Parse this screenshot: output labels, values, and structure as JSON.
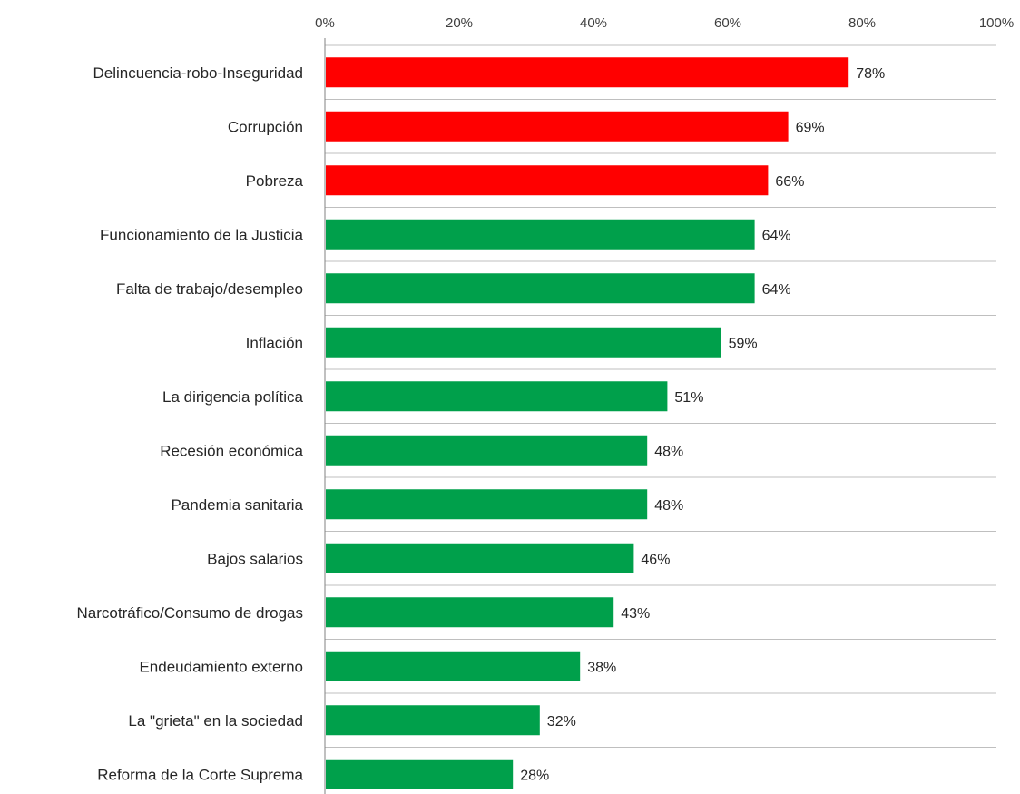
{
  "chart_data": {
    "type": "bar",
    "orientation": "horizontal",
    "title": "",
    "xlabel": "",
    "ylabel": "",
    "xlim": [
      0,
      100
    ],
    "x_ticks": [
      0,
      20,
      40,
      60,
      80,
      100
    ],
    "x_tick_labels": [
      "0%",
      "20%",
      "40%",
      "60%",
      "80%",
      "100%"
    ],
    "x_axis_position": "top",
    "grid": "horizontal separators between categories",
    "legend": "none",
    "categories": [
      "Delincuencia-robo-Inseguridad",
      "Corrupción",
      "Pobreza",
      "Funcionamiento de la Justicia",
      "Falta de trabajo/desempleo",
      "Inflación",
      "La dirigencia política",
      "Recesión económica",
      "Pandemia sanitaria",
      "Bajos salarios",
      "Narcotráfico/Consumo de drogas",
      "Endeudamiento externo",
      "La \"grieta\" en la sociedad",
      "Reforma de la Corte Suprema"
    ],
    "values": [
      78,
      69,
      66,
      64,
      64,
      59,
      51,
      48,
      48,
      46,
      43,
      38,
      32,
      28
    ],
    "value_labels": [
      "78%",
      "69%",
      "66%",
      "64%",
      "64%",
      "59%",
      "51%",
      "48%",
      "48%",
      "46%",
      "43%",
      "38%",
      "32%",
      "28%"
    ],
    "bar_colors": [
      "#ff0000",
      "#ff0000",
      "#ff0000",
      "#00a04b",
      "#00a04b",
      "#00a04b",
      "#00a04b",
      "#00a04b",
      "#00a04b",
      "#00a04b",
      "#00a04b",
      "#00a04b",
      "#00a04b",
      "#00a04b"
    ]
  },
  "colors": {
    "highlight": "#ff0000",
    "default": "#00a04b",
    "grid": "#bfbfbf",
    "axis": "#808080"
  }
}
